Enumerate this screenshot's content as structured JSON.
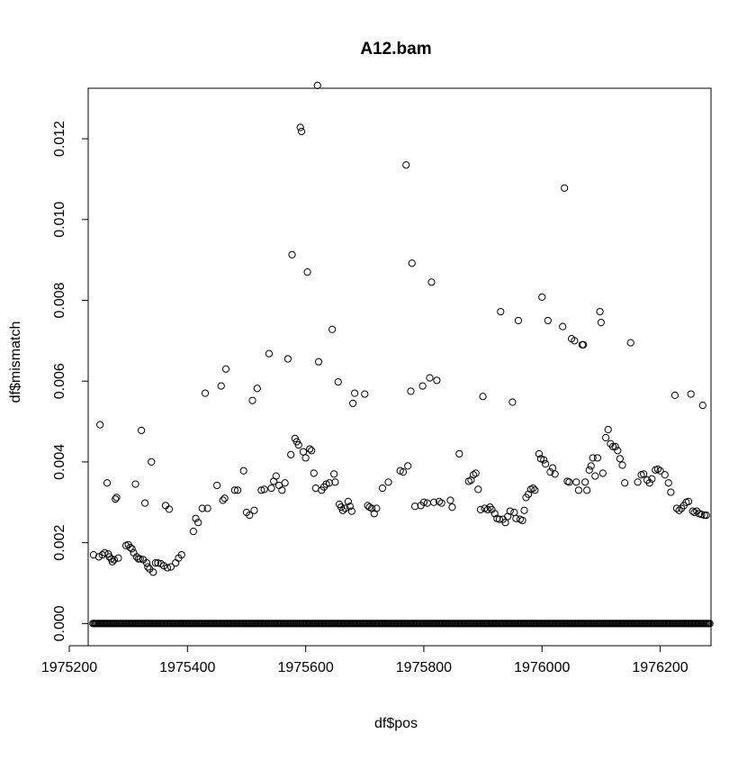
{
  "chart_data": {
    "type": "scatter",
    "title": "A12.bam",
    "xlabel": "df$pos",
    "ylabel": "df$mismatch",
    "xlim": [
      1975232,
      1976286
    ],
    "ylim": [
      -0.00055,
      0.01325
    ],
    "x_ticks": [
      1975200,
      1975400,
      1975600,
      1975800,
      1976000,
      1976200
    ],
    "x_tick_labels": [
      "1975200",
      "1975400",
      "1975600",
      "1975800",
      "1976000",
      "1976200"
    ],
    "y_ticks": [
      0,
      0.002,
      0.004,
      0.006,
      0.008,
      0.01,
      0.012
    ],
    "y_tick_labels": [
      "0.000",
      "0.002",
      "0.004",
      "0.006",
      "0.008",
      "0.010",
      "0.012"
    ],
    "grid": false,
    "legend": "none",
    "marker": "open-circle",
    "zero_baseline": {
      "x_start": 1975240,
      "x_end": 1976284,
      "step": 2,
      "y": 0
    },
    "series": [
      {
        "points": [
          [
            1975241,
            0.0017
          ],
          [
            1975250,
            0.00165
          ],
          [
            1975252,
            0.00492
          ],
          [
            1975256,
            0.0017
          ],
          [
            1975260,
            0.00175
          ],
          [
            1975264,
            0.00348
          ],
          [
            1975266,
            0.00172
          ],
          [
            1975268,
            0.00165
          ],
          [
            1975271,
            0.0016
          ],
          [
            1975273,
            0.00153
          ],
          [
            1975276,
            0.00158
          ],
          [
            1975278,
            0.00308
          ],
          [
            1975280,
            0.00312
          ],
          [
            1975283,
            0.00162
          ],
          [
            1975296,
            0.00193
          ],
          [
            1975300,
            0.00195
          ],
          [
            1975303,
            0.00188
          ],
          [
            1975306,
            0.00185
          ],
          [
            1975309,
            0.00175
          ],
          [
            1975312,
            0.00345
          ],
          [
            1975314,
            0.00165
          ],
          [
            1975317,
            0.0016
          ],
          [
            1975320,
            0.0016
          ],
          [
            1975322,
            0.00478
          ],
          [
            1975325,
            0.00158
          ],
          [
            1975328,
            0.00298
          ],
          [
            1975331,
            0.0015
          ],
          [
            1975333,
            0.0014
          ],
          [
            1975336,
            0.00135
          ],
          [
            1975339,
            0.004
          ],
          [
            1975342,
            0.00127
          ],
          [
            1975346,
            0.0015
          ],
          [
            1975350,
            0.0015
          ],
          [
            1975355,
            0.00148
          ],
          [
            1975360,
            0.00143
          ],
          [
            1975363,
            0.00292
          ],
          [
            1975366,
            0.00138
          ],
          [
            1975369,
            0.00283
          ],
          [
            1975372,
            0.0014
          ],
          [
            1975380,
            0.0015
          ],
          [
            1975385,
            0.00162
          ],
          [
            1975390,
            0.0017
          ],
          [
            1975410,
            0.00228
          ],
          [
            1975414,
            0.0026
          ],
          [
            1975418,
            0.0025
          ],
          [
            1975425,
            0.00285
          ],
          [
            1975430,
            0.0057
          ],
          [
            1975434,
            0.00285
          ],
          [
            1975450,
            0.00342
          ],
          [
            1975457,
            0.00588
          ],
          [
            1975460,
            0.00305
          ],
          [
            1975463,
            0.0031
          ],
          [
            1975465,
            0.0063
          ],
          [
            1975480,
            0.0033
          ],
          [
            1975485,
            0.0033
          ],
          [
            1975495,
            0.00378
          ],
          [
            1975500,
            0.00275
          ],
          [
            1975505,
            0.00268
          ],
          [
            1975510,
            0.00552
          ],
          [
            1975513,
            0.0028
          ],
          [
            1975518,
            0.00582
          ],
          [
            1975525,
            0.0033
          ],
          [
            1975530,
            0.00332
          ],
          [
            1975538,
            0.00668
          ],
          [
            1975542,
            0.00335
          ],
          [
            1975546,
            0.00352
          ],
          [
            1975550,
            0.00365
          ],
          [
            1975555,
            0.00342
          ],
          [
            1975560,
            0.0033
          ],
          [
            1975565,
            0.00348
          ],
          [
            1975570,
            0.00655
          ],
          [
            1975575,
            0.00418
          ],
          [
            1975577,
            0.00913
          ],
          [
            1975582,
            0.00458
          ],
          [
            1975585,
            0.0045
          ],
          [
            1975588,
            0.00442
          ],
          [
            1975591,
            0.01228
          ],
          [
            1975593,
            0.01218
          ],
          [
            1975596,
            0.00425
          ],
          [
            1975600,
            0.0041
          ],
          [
            1975603,
            0.0087
          ],
          [
            1975607,
            0.00432
          ],
          [
            1975610,
            0.00428
          ],
          [
            1975614,
            0.00372
          ],
          [
            1975617,
            0.00335
          ],
          [
            1975620,
            0.01332
          ],
          [
            1975622,
            0.00648
          ],
          [
            1975627,
            0.0033
          ],
          [
            1975631,
            0.00338
          ],
          [
            1975635,
            0.00345
          ],
          [
            1975640,
            0.00348
          ],
          [
            1975645,
            0.00728
          ],
          [
            1975648,
            0.0037
          ],
          [
            1975650,
            0.0035
          ],
          [
            1975655,
            0.00598
          ],
          [
            1975657,
            0.00295
          ],
          [
            1975660,
            0.00288
          ],
          [
            1975663,
            0.0028
          ],
          [
            1975667,
            0.00285
          ],
          [
            1975672,
            0.00302
          ],
          [
            1975675,
            0.0029
          ],
          [
            1975678,
            0.00278
          ],
          [
            1975680,
            0.00545
          ],
          [
            1975683,
            0.0057
          ],
          [
            1975700,
            0.00568
          ],
          [
            1975705,
            0.00292
          ],
          [
            1975708,
            0.00288
          ],
          [
            1975712,
            0.00285
          ],
          [
            1975716,
            0.00272
          ],
          [
            1975720,
            0.00285
          ],
          [
            1975730,
            0.00335
          ],
          [
            1975740,
            0.0035
          ],
          [
            1975760,
            0.00378
          ],
          [
            1975765,
            0.00375
          ],
          [
            1975770,
            0.01135
          ],
          [
            1975773,
            0.0039
          ],
          [
            1975778,
            0.00575
          ],
          [
            1975780,
            0.00892
          ],
          [
            1975785,
            0.0029
          ],
          [
            1975795,
            0.00292
          ],
          [
            1975798,
            0.00588
          ],
          [
            1975800,
            0.003
          ],
          [
            1975806,
            0.00298
          ],
          [
            1975810,
            0.00608
          ],
          [
            1975813,
            0.00845
          ],
          [
            1975817,
            0.003
          ],
          [
            1975822,
            0.00602
          ],
          [
            1975826,
            0.00302
          ],
          [
            1975830,
            0.00298
          ],
          [
            1975845,
            0.00305
          ],
          [
            1975848,
            0.00288
          ],
          [
            1975860,
            0.0042
          ],
          [
            1975876,
            0.00352
          ],
          [
            1975880,
            0.00355
          ],
          [
            1975884,
            0.00368
          ],
          [
            1975888,
            0.00372
          ],
          [
            1975892,
            0.00332
          ],
          [
            1975896,
            0.00282
          ],
          [
            1975900,
            0.00562
          ],
          [
            1975903,
            0.00285
          ],
          [
            1975908,
            0.00282
          ],
          [
            1975912,
            0.00288
          ],
          [
            1975915,
            0.00282
          ],
          [
            1975920,
            0.00272
          ],
          [
            1975924,
            0.0026
          ],
          [
            1975928,
            0.00258
          ],
          [
            1975930,
            0.00772
          ],
          [
            1975934,
            0.00258
          ],
          [
            1975938,
            0.0025
          ],
          [
            1975942,
            0.00265
          ],
          [
            1975946,
            0.00278
          ],
          [
            1975950,
            0.00548
          ],
          [
            1975953,
            0.00275
          ],
          [
            1975956,
            0.0026
          ],
          [
            1975960,
            0.0075
          ],
          [
            1975963,
            0.00258
          ],
          [
            1975967,
            0.00255
          ],
          [
            1975970,
            0.0028
          ],
          [
            1975973,
            0.00312
          ],
          [
            1975977,
            0.0032
          ],
          [
            1975981,
            0.00332
          ],
          [
            1975985,
            0.00335
          ],
          [
            1975988,
            0.0033
          ],
          [
            1975995,
            0.0042
          ],
          [
            1975998,
            0.00408
          ],
          [
            1976000,
            0.00808
          ],
          [
            1976003,
            0.00405
          ],
          [
            1976006,
            0.00395
          ],
          [
            1976010,
            0.0075
          ],
          [
            1976014,
            0.00375
          ],
          [
            1976018,
            0.00385
          ],
          [
            1976022,
            0.0037
          ],
          [
            1976035,
            0.00735
          ],
          [
            1976038,
            0.01078
          ],
          [
            1976043,
            0.00352
          ],
          [
            1976046,
            0.0035
          ],
          [
            1976050,
            0.00705
          ],
          [
            1976055,
            0.007
          ],
          [
            1976058,
            0.0035
          ],
          [
            1976062,
            0.0033
          ],
          [
            1976068,
            0.0069
          ],
          [
            1976070,
            0.0069
          ],
          [
            1976073,
            0.0035
          ],
          [
            1976076,
            0.0033
          ],
          [
            1976080,
            0.0038
          ],
          [
            1976083,
            0.0039
          ],
          [
            1976086,
            0.0041
          ],
          [
            1976090,
            0.00365
          ],
          [
            1976094,
            0.0041
          ],
          [
            1976098,
            0.00772
          ],
          [
            1976100,
            0.00745
          ],
          [
            1976103,
            0.00372
          ],
          [
            1976108,
            0.0046
          ],
          [
            1976112,
            0.0048
          ],
          [
            1976116,
            0.00445
          ],
          [
            1976120,
            0.00438
          ],
          [
            1976124,
            0.00438
          ],
          [
            1976128,
            0.00428
          ],
          [
            1976132,
            0.00408
          ],
          [
            1976136,
            0.00392
          ],
          [
            1976140,
            0.00348
          ],
          [
            1976150,
            0.00695
          ],
          [
            1976162,
            0.0035
          ],
          [
            1976168,
            0.00368
          ],
          [
            1976172,
            0.0037
          ],
          [
            1976178,
            0.00355
          ],
          [
            1976182,
            0.00348
          ],
          [
            1976186,
            0.00358
          ],
          [
            1976192,
            0.0038
          ],
          [
            1976196,
            0.00382
          ],
          [
            1976200,
            0.00378
          ],
          [
            1976208,
            0.00368
          ],
          [
            1976214,
            0.00348
          ],
          [
            1976218,
            0.00325
          ],
          [
            1976225,
            0.00565
          ],
          [
            1976228,
            0.00285
          ],
          [
            1976232,
            0.0028
          ],
          [
            1976236,
            0.00285
          ],
          [
            1976240,
            0.00292
          ],
          [
            1976244,
            0.003
          ],
          [
            1976248,
            0.00302
          ],
          [
            1976252,
            0.00568
          ],
          [
            1976255,
            0.00278
          ],
          [
            1976258,
            0.00275
          ],
          [
            1976262,
            0.00278
          ],
          [
            1976266,
            0.00272
          ],
          [
            1976270,
            0.0027
          ],
          [
            1976272,
            0.0054
          ],
          [
            1976275,
            0.00268
          ],
          [
            1976278,
            0.00268
          ]
        ]
      }
    ]
  }
}
